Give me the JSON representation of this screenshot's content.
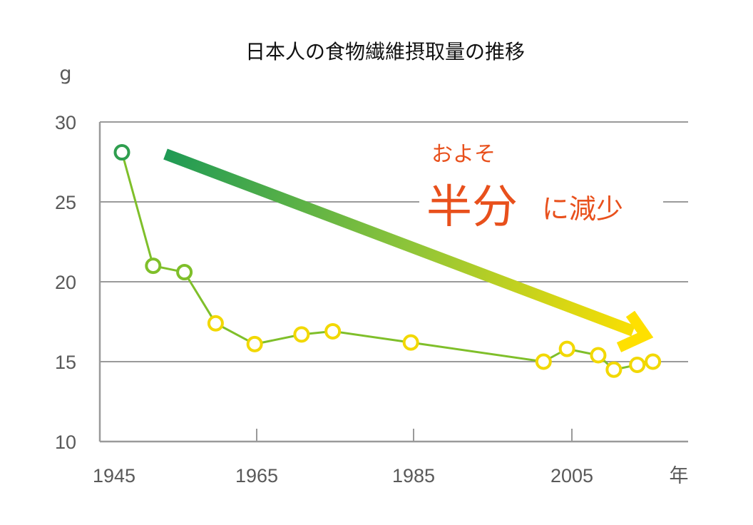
{
  "chart_data": {
    "type": "line",
    "title": "日本人の食物繊維摂取量の推移",
    "ylabel": "g",
    "xlabel": "年",
    "ylim": [
      10,
      30
    ],
    "xlim": [
      1943,
      2022
    ],
    "yticks": [
      10,
      15,
      20,
      25,
      30
    ],
    "xticks": [
      1945,
      1965,
      1985,
      2005
    ],
    "grid": true,
    "series": [
      {
        "x": [
          1947,
          1951,
          1955,
          1959,
          1964,
          1970,
          1974,
          1984,
          2001,
          2004,
          2008,
          2010,
          2013,
          2015
        ],
        "values": [
          28.1,
          21.0,
          20.6,
          17.4,
          16.1,
          16.7,
          16.9,
          16.2,
          15.0,
          15.8,
          15.4,
          14.5,
          14.8,
          15.0
        ]
      }
    ],
    "annotation": {
      "line1": "およそ",
      "big": "半分",
      "rest": "に減少"
    },
    "colors": {
      "line": "#7fbf2a",
      "marker_green": "#2f9e4f",
      "marker_yellow": "#f2d800",
      "arrow_start": "#1f9a55",
      "arrow_end": "#ffe000",
      "grid": "#9a9a9a",
      "callout": "#e8501c"
    }
  }
}
